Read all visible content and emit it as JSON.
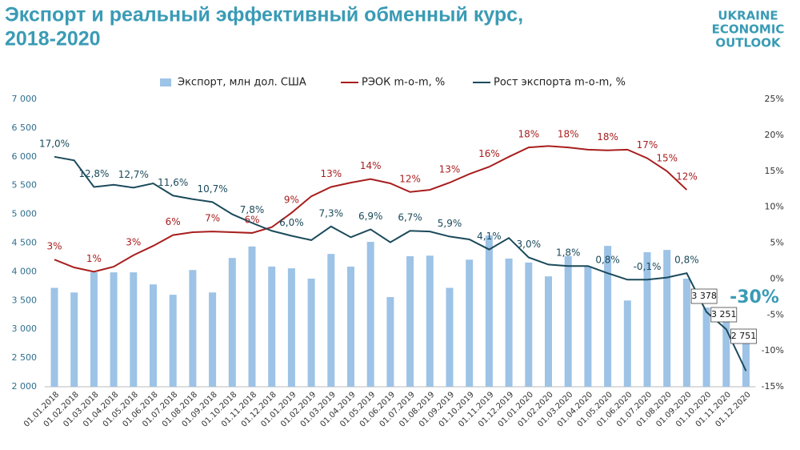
{
  "chart_data": {
    "type": "combo",
    "title": "Экспорт и реальный эффективный обменный курс,",
    "subtitle": "2018-2020",
    "logo": [
      "UKRAINE",
      "ECONOMIC",
      "OUTLOOK"
    ],
    "annotation": "-30%",
    "legend_position": "top",
    "categories": [
      "01.01.2018",
      "01.02.2018",
      "01.03.2018",
      "01.04.2018",
      "01.05.2018",
      "01.06.2018",
      "01.07.2018",
      "01.08.2018",
      "01.09.2018",
      "01.10.2018",
      "01.11.2018",
      "01.12.2018",
      "01.01.2019",
      "01.02.2019",
      "01.03.2019",
      "01.04.2019",
      "01.05.2019",
      "01.06.2019",
      "01.07.2019",
      "01.08.2019",
      "01.09.2019",
      "01.10.2019",
      "01.11.2019",
      "01.12.2019",
      "01.01.2020",
      "01.02.2020",
      "01.03.2020",
      "01.04.2020",
      "01.05.2020",
      "01.06.2020",
      "01.07.2020",
      "01.08.2020",
      "01.09.2020",
      "01.10.2020",
      "01.11.2020",
      "01.12.2020"
    ],
    "series": [
      {
        "name": "Экспорт, млн дол. США",
        "type": "bar",
        "color": "#9dc3e6",
        "values": [
          3720,
          3640,
          3990,
          3990,
          3990,
          3780,
          3600,
          4030,
          3640,
          4240,
          4440,
          4090,
          4060,
          3880,
          4310,
          4090,
          4520,
          3560,
          4270,
          4280,
          3720,
          4210,
          4630,
          4230,
          4160,
          3920,
          4270,
          4090,
          4450,
          3500,
          4340,
          4380,
          3880,
          3378,
          3251,
          2751
        ],
        "value_labels": [
          null,
          null,
          null,
          null,
          null,
          null,
          null,
          null,
          null,
          null,
          null,
          null,
          null,
          null,
          null,
          null,
          null,
          null,
          null,
          null,
          null,
          null,
          null,
          null,
          null,
          null,
          null,
          null,
          null,
          null,
          null,
          null,
          null,
          "3 378",
          "3 251",
          "2 751"
        ]
      },
      {
        "name": "РЭОК m-o-m, %",
        "type": "line",
        "axis": "y2",
        "color": "#a81e1e",
        "values": [
          2.7,
          1.6,
          1.0,
          1.7,
          3.3,
          4.6,
          6.1,
          6.5,
          6.6,
          6.5,
          6.4,
          7.2,
          9.2,
          11.5,
          12.8,
          13.4,
          13.9,
          13.3,
          12.1,
          12.4,
          13.4,
          14.6,
          15.6,
          17.0,
          18.3,
          18.5,
          18.3,
          18.0,
          17.9,
          18.0,
          16.8,
          15.0,
          12.4,
          null,
          null,
          null
        ],
        "value_labels": [
          "3%",
          null,
          "1%",
          null,
          "3%",
          null,
          "6%",
          null,
          "7%",
          null,
          "6%",
          null,
          "9%",
          null,
          "13%",
          null,
          "14%",
          null,
          "12%",
          null,
          "13%",
          null,
          "16%",
          null,
          "18%",
          null,
          "18%",
          null,
          "18%",
          null,
          "17%",
          "15%",
          "12%",
          null,
          null,
          null
        ]
      },
      {
        "name": "Рост экспорта m-o-m, %",
        "type": "line",
        "axis": "y2",
        "color": "#1b4a5b",
        "values": [
          17.0,
          16.5,
          12.8,
          13.1,
          12.7,
          13.3,
          11.6,
          11.1,
          10.7,
          9.0,
          7.8,
          6.7,
          6.0,
          5.4,
          7.3,
          5.8,
          6.9,
          5.1,
          6.7,
          6.6,
          5.9,
          5.5,
          4.1,
          5.7,
          3.0,
          2.0,
          1.8,
          1.8,
          0.8,
          -0.1,
          -0.1,
          0.2,
          0.8,
          -4.6,
          -7.0,
          -12.8
        ],
        "value_labels": [
          "17,0%",
          null,
          "12,8%",
          null,
          "12,7%",
          null,
          "11,6%",
          null,
          "10,7%",
          null,
          "7,8%",
          null,
          "6,0%",
          null,
          "7,3%",
          null,
          "6,9%",
          null,
          "6,7%",
          null,
          "5,9%",
          null,
          "4,1%",
          null,
          "3,0%",
          null,
          "1,8%",
          null,
          "0,8%",
          null,
          "-0,1%",
          null,
          "0,8%",
          null,
          null,
          null
        ]
      }
    ],
    "ylim": [
      2000,
      7000
    ],
    "yticks": [
      {
        "value": 2000,
        "label": "2 000"
      },
      {
        "value": 2500,
        "label": "2 500"
      },
      {
        "value": 3000,
        "label": "3 000"
      },
      {
        "value": 3500,
        "label": "3 500"
      },
      {
        "value": 4000,
        "label": "4 000"
      },
      {
        "value": 4500,
        "label": "4 500"
      },
      {
        "value": 5000,
        "label": "5 000"
      },
      {
        "value": 5500,
        "label": "5 500"
      },
      {
        "value": 6000,
        "label": "6 000"
      },
      {
        "value": 6500,
        "label": "6 500"
      },
      {
        "value": 7000,
        "label": "7 000"
      }
    ],
    "y2lim": [
      -15,
      25
    ],
    "y2ticks": [
      {
        "value": -15,
        "label": "-15%"
      },
      {
        "value": -10,
        "label": "-10%"
      },
      {
        "value": -5,
        "label": "-5%"
      },
      {
        "value": 0,
        "label": "0%"
      },
      {
        "value": 5,
        "label": "5%"
      },
      {
        "value": 10,
        "label": "10%"
      },
      {
        "value": 15,
        "label": "15%"
      },
      {
        "value": 20,
        "label": "20%"
      },
      {
        "value": 25,
        "label": "25%"
      }
    ]
  }
}
